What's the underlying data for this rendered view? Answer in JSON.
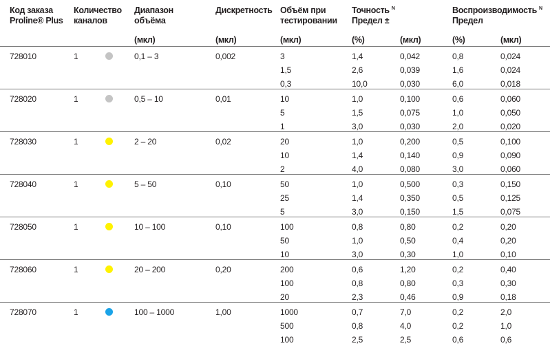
{
  "header": {
    "order_code": [
      "Код заказа",
      "Proline® Plus"
    ],
    "channels": [
      "Количество",
      "каналов"
    ],
    "range": [
      "Диапазон",
      "объёма"
    ],
    "range_unit": "(мкл)",
    "increment": "Дискретность",
    "increment_unit": "(мкл)",
    "test_volume": [
      "Объём при",
      "тестировании"
    ],
    "test_volume_unit": "(мкл)",
    "accuracy": [
      "Точность",
      "Предел ±"
    ],
    "accuracy_sup": "N",
    "accuracy_pct_unit": "(%)",
    "accuracy_ul_unit": "(мкл)",
    "repro": [
      "Воспроизводимость",
      "Предел"
    ],
    "repro_sup": "N",
    "repro_pct_unit": "(%)",
    "repro_ul_unit": "(мкл)"
  },
  "colors": {
    "grey": "#c4c4c4",
    "yellow": "#fff200",
    "blue": "#1aa3e8"
  },
  "rows": [
    {
      "code": "728010",
      "channels": "1",
      "color": "grey",
      "range": "0,1 – 3",
      "increment": "0,002",
      "volumes": [
        "3",
        "1,5",
        "0,3"
      ],
      "acc_pct": [
        "1,4",
        "2,6",
        "10,0"
      ],
      "acc_ul": [
        "0,042",
        "0,039",
        "0,030"
      ],
      "rep_pct": [
        "0,8",
        "1,6",
        "6,0"
      ],
      "rep_ul": [
        "0,024",
        "0,024",
        "0,018"
      ]
    },
    {
      "code": "728020",
      "channels": "1",
      "color": "grey",
      "range": "0,5 – 10",
      "increment": "0,01",
      "volumes": [
        "10",
        "5",
        "1"
      ],
      "acc_pct": [
        "1,0",
        "1,5",
        "3,0"
      ],
      "acc_ul": [
        "0,100",
        "0,075",
        "0,030"
      ],
      "rep_pct": [
        "0,6",
        "1,0",
        "2,0"
      ],
      "rep_ul": [
        "0,060",
        "0,050",
        "0,020"
      ]
    },
    {
      "code": "728030",
      "channels": "1",
      "color": "yellow",
      "range": "2 – 20",
      "increment": "0,02",
      "volumes": [
        "20",
        "10",
        "2"
      ],
      "acc_pct": [
        "1,0",
        "1,4",
        "4,0"
      ],
      "acc_ul": [
        "0,200",
        "0,140",
        "0,080"
      ],
      "rep_pct": [
        "0,5",
        "0,9",
        "3,0"
      ],
      "rep_ul": [
        "0,100",
        "0,090",
        "0,060"
      ]
    },
    {
      "code": "728040",
      "channels": "1",
      "color": "yellow",
      "range": "5 – 50",
      "increment": "0,10",
      "volumes": [
        "50",
        "25",
        "5"
      ],
      "acc_pct": [
        "1,0",
        "1,4",
        "3,0"
      ],
      "acc_ul": [
        "0,500",
        "0,350",
        "0,150"
      ],
      "rep_pct": [
        "0,3",
        "0,5",
        "1,5"
      ],
      "rep_ul": [
        "0,150",
        "0,125",
        "0,075"
      ]
    },
    {
      "code": "728050",
      "channels": "1",
      "color": "yellow",
      "range": "10 – 100",
      "increment": "0,10",
      "volumes": [
        "100",
        "50",
        "10"
      ],
      "acc_pct": [
        "0,8",
        "1,0",
        "3,0"
      ],
      "acc_ul": [
        "0,80",
        "0,50",
        "0,30"
      ],
      "rep_pct": [
        "0,2",
        "0,4",
        "1,0"
      ],
      "rep_ul": [
        "0,20",
        "0,20",
        "0,10"
      ]
    },
    {
      "code": "728060",
      "channels": "1",
      "color": "yellow",
      "range": "20 – 200",
      "increment": "0,20",
      "volumes": [
        "200",
        "100",
        "20"
      ],
      "acc_pct": [
        "0,6",
        "0,8",
        "2,3"
      ],
      "acc_ul": [
        "1,20",
        "0,80",
        "0,46"
      ],
      "rep_pct": [
        "0,2",
        "0,3",
        "0,9"
      ],
      "rep_ul": [
        "0,40",
        "0,30",
        "0,18"
      ]
    },
    {
      "code": "728070",
      "channels": "1",
      "color": "blue",
      "range": "100 – 1000",
      "increment": "1,00",
      "volumes": [
        "1000",
        "500",
        "100"
      ],
      "acc_pct": [
        "0,7",
        "0,8",
        "2,5"
      ],
      "acc_ul": [
        "7,0",
        "4,0",
        "2,5"
      ],
      "rep_pct": [
        "0,2",
        "0,2",
        "0,6"
      ],
      "rep_ul": [
        "2,0",
        "1,0",
        "0,6"
      ]
    }
  ]
}
